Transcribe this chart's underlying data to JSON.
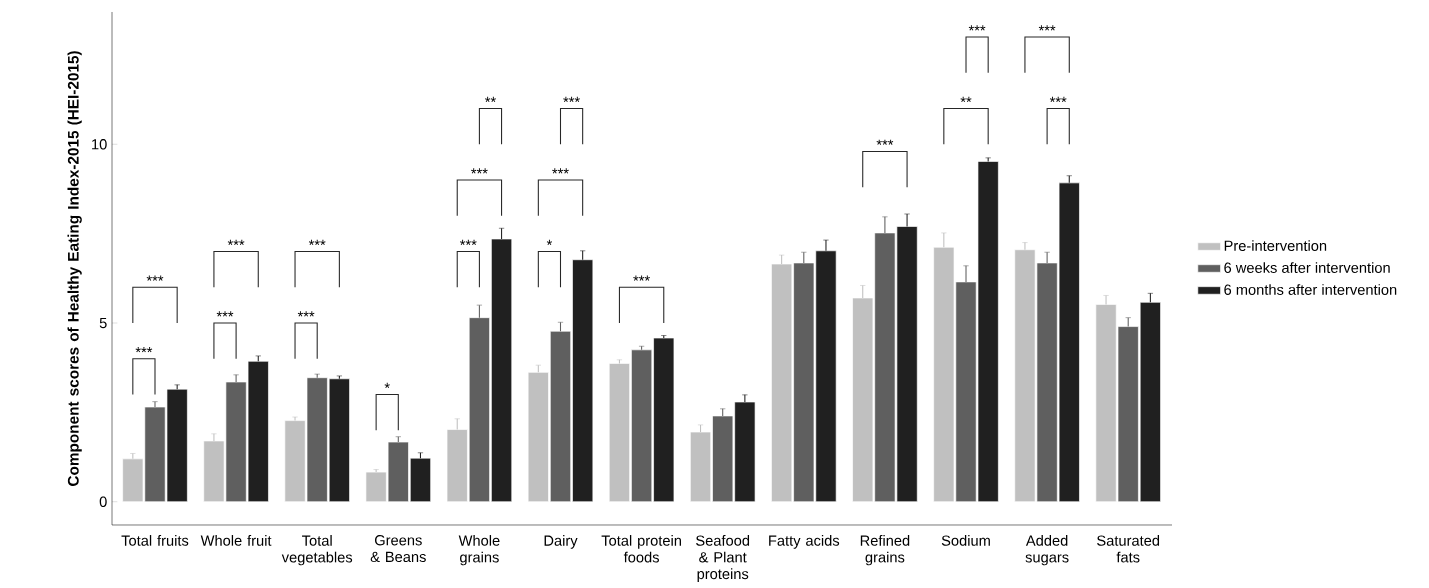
{
  "chart_data": {
    "type": "bar",
    "ylabel": "Component scores of Healthy Eating Index-2015 (HEI-2015)",
    "categories": [
      "Total fruits",
      "Whole fruit",
      "Total vegetables",
      "Greens & Beans",
      "Whole grains",
      "Dairy",
      "Total protein foods",
      "Seafood & Plant proteins",
      "Fatty acids",
      "Refined grains",
      "Sodium",
      "Added sugars",
      "Saturated fats"
    ],
    "series": [
      {
        "name": "Pre-intervention",
        "color": "#c0c0c0",
        "values": [
          1.2,
          1.7,
          2.27,
          0.83,
          2.02,
          3.62,
          3.87,
          1.95,
          6.65,
          5.7,
          7.12,
          7.05,
          5.52
        ],
        "errors": [
          0.15,
          0.2,
          0.1,
          0.07,
          0.3,
          0.2,
          0.1,
          0.2,
          0.25,
          0.35,
          0.4,
          0.2,
          0.25
        ]
      },
      {
        "name": "6 weeks after intervention",
        "color": "#5f5f5f",
        "values": [
          2.65,
          3.35,
          3.47,
          1.67,
          5.15,
          4.77,
          4.25,
          2.4,
          6.68,
          7.52,
          6.15,
          6.68,
          4.9
        ],
        "errors": [
          0.15,
          0.2,
          0.1,
          0.15,
          0.35,
          0.25,
          0.1,
          0.2,
          0.3,
          0.45,
          0.45,
          0.3,
          0.25
        ]
      },
      {
        "name": "6 months after intervention",
        "color": "#202020",
        "values": [
          3.15,
          3.93,
          3.44,
          1.22,
          7.35,
          6.77,
          4.58,
          2.79,
          7.02,
          7.7,
          9.52,
          8.92,
          5.58
        ],
        "errors": [
          0.12,
          0.15,
          0.08,
          0.15,
          0.3,
          0.25,
          0.07,
          0.2,
          0.3,
          0.35,
          0.1,
          0.2,
          0.25
        ]
      }
    ],
    "ylim": [
      -0.65,
      13.7
    ],
    "yticks": [
      0,
      5,
      10
    ],
    "legend": "right",
    "annotations": [
      "***",
      "***",
      "***",
      "***",
      "***",
      "***",
      "*",
      "***",
      "***",
      "**",
      "*",
      "***",
      "***",
      "***",
      "***",
      "**",
      "***",
      "***",
      "***"
    ]
  }
}
